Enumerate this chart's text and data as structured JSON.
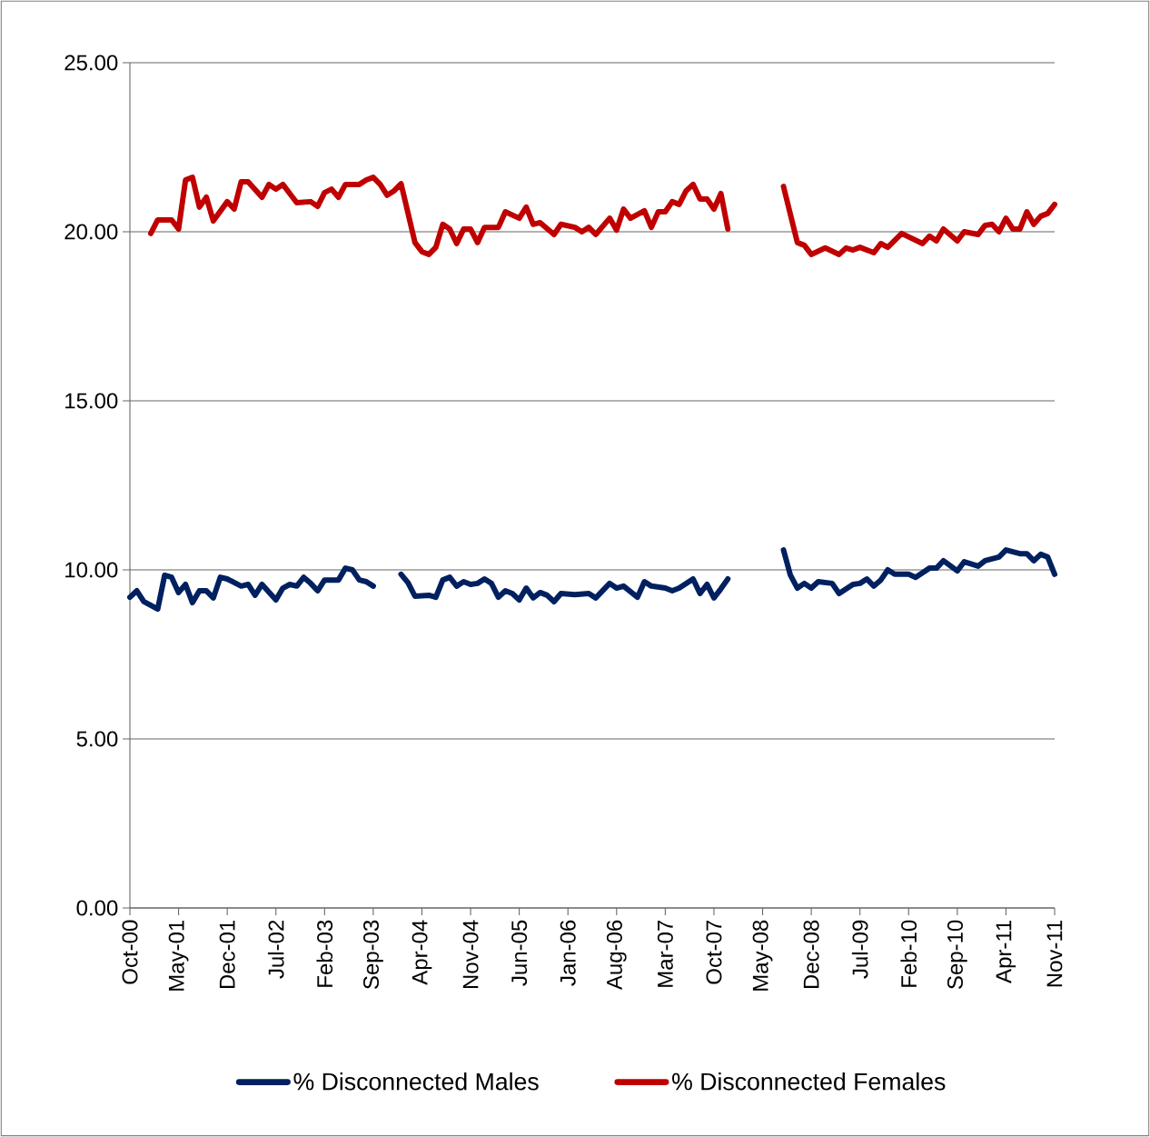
{
  "chart_data": {
    "type": "line",
    "xlim": [
      "2000-10",
      "2011-11"
    ],
    "xticks": [
      {
        "value": "2000-10",
        "label": "Oct-00"
      },
      {
        "value": "2001-05",
        "label": "May-01"
      },
      {
        "value": "2001-12",
        "label": "Dec-01"
      },
      {
        "value": "2002-07",
        "label": "Jul-02"
      },
      {
        "value": "2003-02",
        "label": "Feb-03"
      },
      {
        "value": "2003-09",
        "label": "Sep-03"
      },
      {
        "value": "2004-04",
        "label": "Apr-04"
      },
      {
        "value": "2004-11",
        "label": "Nov-04"
      },
      {
        "value": "2005-06",
        "label": "Jun-05"
      },
      {
        "value": "2006-01",
        "label": "Jan-06"
      },
      {
        "value": "2006-08",
        "label": "Aug-06"
      },
      {
        "value": "2007-03",
        "label": "Mar-07"
      },
      {
        "value": "2007-10",
        "label": "Oct-07"
      },
      {
        "value": "2008-05",
        "label": "May-08"
      },
      {
        "value": "2008-12",
        "label": "Dec-08"
      },
      {
        "value": "2009-07",
        "label": "Jul-09"
      },
      {
        "value": "2010-02",
        "label": "Feb-10"
      },
      {
        "value": "2010-09",
        "label": "Sep-10"
      },
      {
        "value": "2011-04",
        "label": "Apr-11"
      },
      {
        "value": "2011-11",
        "label": "Nov-11"
      }
    ],
    "ylim": [
      0,
      25
    ],
    "yticks": [
      {
        "value": 0,
        "label": "0.00"
      },
      {
        "value": 5,
        "label": "5.00"
      },
      {
        "value": 10,
        "label": "10.00"
      },
      {
        "value": 15,
        "label": "15.00"
      },
      {
        "value": 20,
        "label": "20.00"
      },
      {
        "value": 25,
        "label": "25.00"
      }
    ],
    "grid": "y",
    "legend": "bottom",
    "line_style": "solid",
    "series": [
      {
        "name": "% Disconnected Males",
        "color": "#002060",
        "x": [
          "2000-10",
          "2000-11",
          "2000-12",
          "2001-02",
          "2001-03",
          "2001-04",
          "2001-05",
          "2001-06",
          "2001-07",
          "2001-08",
          "2001-09",
          "2001-10",
          "2001-11",
          "2001-12",
          "2002-02",
          "2002-03",
          "2002-04",
          "2002-05",
          "2002-07",
          "2002-08",
          "2002-09",
          "2002-10",
          "2002-11",
          "2002-12",
          "2003-01",
          "2003-02",
          "2003-04",
          "2003-05",
          "2003-06",
          "2003-07",
          "2003-08",
          "2003-09",
          "2003-11",
          "2004-01",
          "2004-02",
          "2004-03",
          "2004-05",
          "2004-06",
          "2004-07",
          "2004-08",
          "2004-09",
          "2004-10",
          "2004-11",
          "2004-12",
          "2005-01",
          "2005-02",
          "2005-03",
          "2005-04",
          "2005-05",
          "2005-06",
          "2005-07",
          "2005-08",
          "2005-09",
          "2005-10",
          "2005-11",
          "2005-12",
          "2006-02",
          "2006-04",
          "2006-05",
          "2006-07",
          "2006-08",
          "2006-09",
          "2006-11",
          "2006-12",
          "2007-01",
          "2007-03",
          "2007-04",
          "2007-05",
          "2007-07",
          "2007-08",
          "2007-09",
          "2007-10",
          "2007-11",
          "2007-12",
          "2008-04",
          "2008-08",
          "2008-09",
          "2008-10",
          "2008-11",
          "2008-12",
          "2009-01",
          "2009-03",
          "2009-04",
          "2009-06",
          "2009-07",
          "2009-08",
          "2009-09",
          "2009-10",
          "2009-11",
          "2009-12",
          "2010-02",
          "2010-03",
          "2010-05",
          "2010-06",
          "2010-07",
          "2010-09",
          "2010-10",
          "2010-12",
          "2011-01",
          "2011-03",
          "2011-04",
          "2011-06",
          "2011-07",
          "2011-08",
          "2011-09",
          "2011-10",
          "2011-11"
        ],
        "values": [
          9.19,
          9.38,
          9.06,
          8.84,
          9.84,
          9.78,
          9.33,
          9.57,
          9.03,
          9.38,
          9.38,
          9.17,
          9.78,
          9.73,
          9.52,
          9.57,
          9.25,
          9.57,
          9.11,
          9.46,
          9.57,
          9.52,
          9.78,
          9.6,
          9.38,
          9.7,
          9.7,
          10.05,
          10.0,
          9.7,
          9.65,
          9.52,
          null,
          9.87,
          9.62,
          9.22,
          9.25,
          9.19,
          9.7,
          9.78,
          9.52,
          9.65,
          9.57,
          9.6,
          9.73,
          9.6,
          9.19,
          9.38,
          9.3,
          9.11,
          9.46,
          9.17,
          9.33,
          9.25,
          9.06,
          9.3,
          9.27,
          9.3,
          9.17,
          9.6,
          9.46,
          9.52,
          9.19,
          9.65,
          9.52,
          9.46,
          9.38,
          9.46,
          9.73,
          9.3,
          9.57,
          9.17,
          9.44,
          9.73,
          null,
          10.59,
          9.84,
          9.46,
          9.6,
          9.46,
          9.65,
          9.6,
          9.3,
          9.57,
          9.6,
          9.73,
          9.52,
          9.7,
          10.0,
          9.87,
          9.87,
          9.78,
          10.05,
          10.05,
          10.27,
          9.97,
          10.24,
          10.11,
          10.27,
          10.38,
          10.59,
          10.48,
          10.48,
          10.27,
          10.46,
          10.38,
          9.87
        ]
      },
      {
        "name": "% Disconnected Females",
        "color": "#c00000",
        "x": [
          "2001-01",
          "2001-02",
          "2001-04",
          "2001-05",
          "2001-06",
          "2001-07",
          "2001-08",
          "2001-09",
          "2001-10",
          "2001-12",
          "2002-01",
          "2002-02",
          "2002-03",
          "2002-05",
          "2002-06",
          "2002-07",
          "2002-08",
          "2002-09",
          "2002-10",
          "2002-12",
          "2003-01",
          "2003-02",
          "2003-03",
          "2003-04",
          "2003-05",
          "2003-07",
          "2003-08",
          "2003-09",
          "2003-10",
          "2003-11",
          "2003-12",
          "2004-01",
          "2004-03",
          "2004-04",
          "2004-05",
          "2004-06",
          "2004-07",
          "2004-08",
          "2004-09",
          "2004-10",
          "2004-11",
          "2004-12",
          "2005-01",
          "2005-03",
          "2005-04",
          "2005-06",
          "2005-07",
          "2005-08",
          "2005-09",
          "2005-11",
          "2005-12",
          "2006-02",
          "2006-03",
          "2006-04",
          "2006-05",
          "2006-07",
          "2006-08",
          "2006-09",
          "2006-10",
          "2006-12",
          "2007-01",
          "2007-02",
          "2007-03",
          "2007-04",
          "2007-05",
          "2007-06",
          "2007-07",
          "2007-08",
          "2007-09",
          "2007-10",
          "2007-11",
          "2007-12",
          "2008-04",
          "2008-08",
          "2008-10",
          "2008-11",
          "2008-12",
          "2009-02",
          "2009-04",
          "2009-05",
          "2009-06",
          "2009-07",
          "2009-09",
          "2009-10",
          "2009-11",
          "2010-01",
          "2010-04",
          "2010-05",
          "2010-06",
          "2010-07",
          "2010-09",
          "2010-10",
          "2010-12",
          "2011-01",
          "2011-02",
          "2011-03",
          "2011-04",
          "2011-05",
          "2011-06",
          "2011-07",
          "2011-08",
          "2011-09",
          "2011-10",
          "2011-11"
        ],
        "values": [
          19.95,
          20.35,
          20.35,
          20.08,
          21.53,
          21.61,
          20.73,
          21.02,
          20.32,
          20.89,
          20.67,
          21.48,
          21.48,
          21.02,
          21.4,
          21.26,
          21.4,
          21.13,
          20.86,
          20.89,
          20.75,
          21.16,
          21.26,
          21.02,
          21.4,
          21.4,
          21.53,
          21.61,
          21.4,
          21.08,
          21.21,
          21.42,
          19.68,
          19.41,
          19.33,
          19.54,
          20.22,
          20.08,
          19.65,
          20.08,
          20.08,
          19.68,
          20.13,
          20.13,
          20.59,
          20.4,
          20.73,
          20.22,
          20.27,
          19.92,
          20.22,
          20.13,
          20.0,
          20.13,
          19.92,
          20.4,
          20.05,
          20.67,
          20.4,
          20.62,
          20.13,
          20.59,
          20.59,
          20.89,
          20.81,
          21.21,
          21.4,
          20.97,
          20.97,
          20.67,
          21.13,
          20.08,
          null,
          21.34,
          19.68,
          19.6,
          19.33,
          19.52,
          19.33,
          19.52,
          19.46,
          19.54,
          19.38,
          19.65,
          19.54,
          19.95,
          19.65,
          19.87,
          19.73,
          20.08,
          19.73,
          20.0,
          19.92,
          20.19,
          20.22,
          20.0,
          20.4,
          20.08,
          20.08,
          20.59,
          20.22,
          20.46,
          20.54,
          20.81
        ]
      }
    ]
  }
}
